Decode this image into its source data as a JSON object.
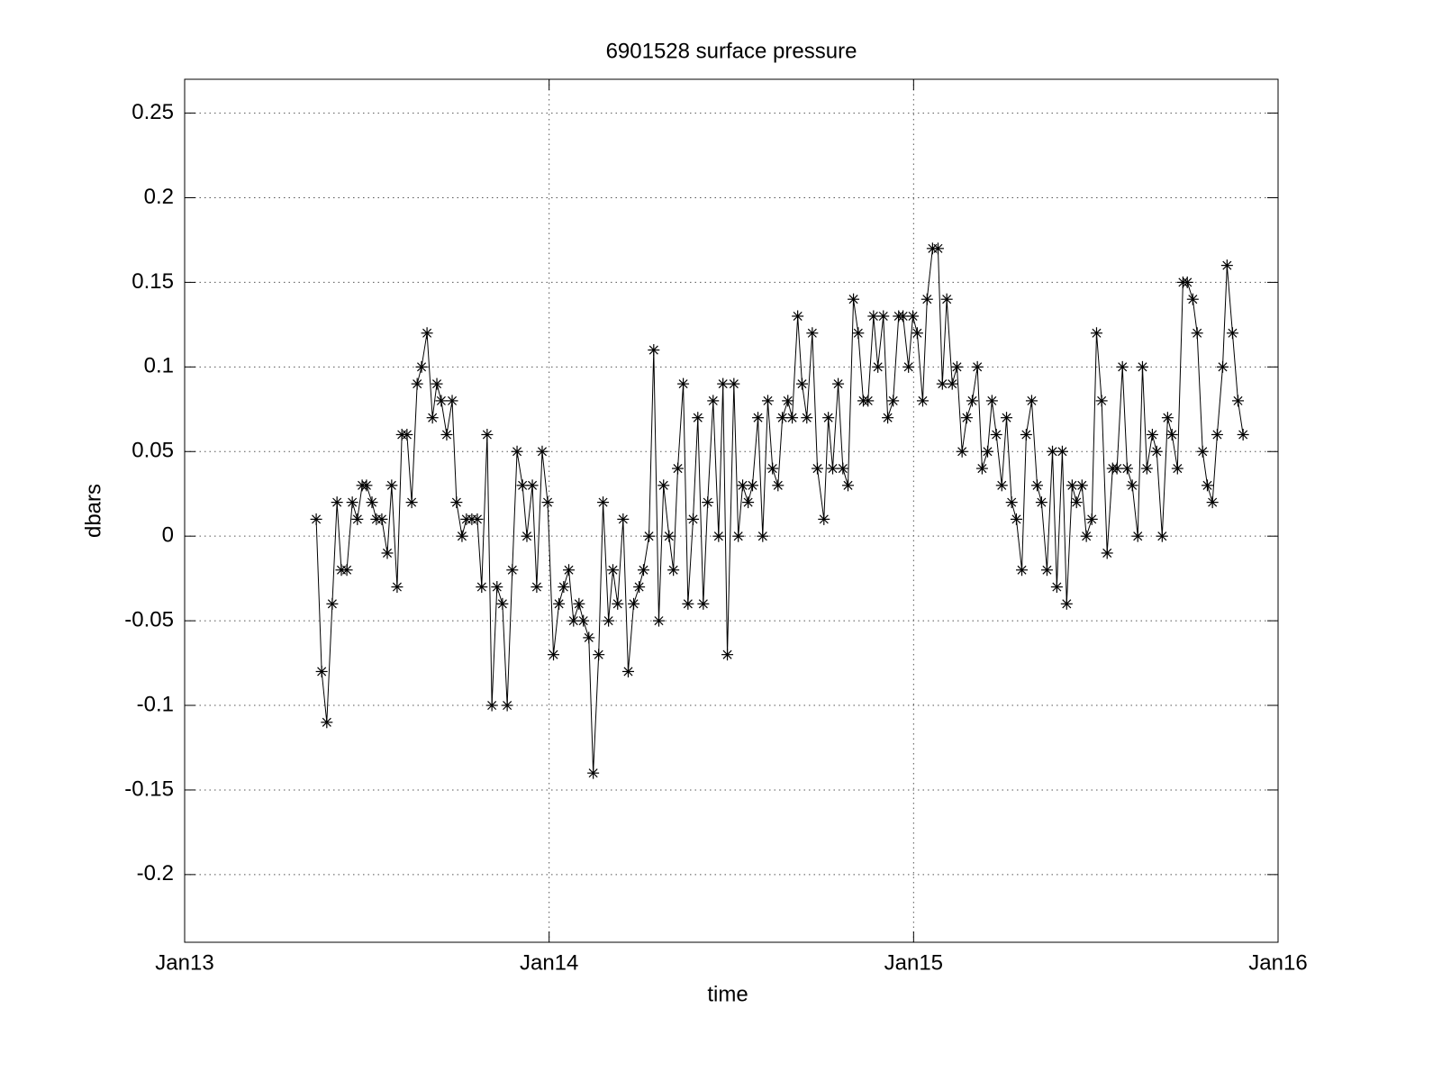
{
  "chart_data": {
    "type": "line",
    "title": "6901528 surface pressure",
    "x_label": "time",
    "y_label": "dbars",
    "xlim": [
      2013,
      2016
    ],
    "xticks": [
      {
        "value": 2013,
        "label": "Jan13"
      },
      {
        "value": 2014,
        "label": "Jan14"
      },
      {
        "value": 2015,
        "label": "Jan15"
      },
      {
        "value": 2016,
        "label": "Jan16"
      }
    ],
    "ylim": [
      -0.24,
      0.27
    ],
    "yticks": [
      -0.2,
      -0.15,
      -0.1,
      -0.05,
      0,
      0.05,
      0.1,
      0.15,
      0.2,
      0.25
    ],
    "grid": true,
    "series": [
      {
        "name": "surface pressure",
        "color": "#000000",
        "marker": "asterisk",
        "x": [
          2013.361,
          2013.376,
          2013.39,
          2013.405,
          2013.418,
          2013.43,
          2013.445,
          2013.46,
          2013.474,
          2013.487,
          2013.499,
          2013.514,
          2013.526,
          2013.541,
          2013.556,
          2013.568,
          2013.583,
          2013.596,
          2013.61,
          2013.623,
          2013.638,
          2013.65,
          2013.665,
          2013.68,
          2013.692,
          2013.704,
          2013.719,
          2013.734,
          2013.746,
          2013.761,
          2013.773,
          2013.788,
          2013.803,
          2013.815,
          2013.83,
          2013.843,
          2013.857,
          2013.872,
          2013.885,
          2013.899,
          2013.912,
          2013.927,
          2013.939,
          2013.954,
          2013.966,
          2013.981,
          2013.996,
          2014.012,
          2014.027,
          2014.04,
          2014.054,
          2014.067,
          2014.082,
          2014.094,
          2014.109,
          2014.121,
          2014.136,
          2014.148,
          2014.163,
          2014.175,
          2014.188,
          2014.203,
          2014.217,
          2014.232,
          2014.247,
          2014.259,
          2014.274,
          2014.287,
          2014.301,
          2014.314,
          2014.329,
          2014.341,
          2014.353,
          2014.368,
          2014.381,
          2014.395,
          2014.408,
          2014.423,
          2014.435,
          2014.45,
          2014.465,
          2014.477,
          2014.489,
          2014.507,
          2014.519,
          2014.531,
          2014.546,
          2014.558,
          2014.573,
          2014.586,
          2014.6,
          2014.613,
          2014.628,
          2014.64,
          2014.655,
          2014.667,
          2014.682,
          2014.694,
          2014.707,
          2014.722,
          2014.736,
          2014.754,
          2014.766,
          2014.778,
          2014.793,
          2014.806,
          2014.82,
          2014.835,
          2014.848,
          2014.862,
          2014.875,
          2014.89,
          2014.902,
          2014.917,
          2014.929,
          2014.944,
          2014.959,
          2014.971,
          2014.986,
          2014.998,
          2015.01,
          2015.025,
          2015.037,
          2015.052,
          2015.067,
          2015.079,
          2015.091,
          2015.106,
          2015.119,
          2015.133,
          2015.146,
          2015.161,
          2015.175,
          2015.188,
          2015.203,
          2015.215,
          2015.227,
          2015.242,
          2015.255,
          2015.269,
          2015.282,
          2015.297,
          2015.309,
          2015.324,
          2015.339,
          2015.351,
          2015.366,
          2015.381,
          2015.393,
          2015.408,
          2015.42,
          2015.435,
          2015.447,
          2015.462,
          2015.474,
          2015.489,
          2015.502,
          2015.516,
          2015.531,
          2015.546,
          2015.558,
          2015.573,
          2015.586,
          2015.6,
          2015.615,
          2015.628,
          2015.64,
          2015.655,
          2015.667,
          2015.682,
          2015.697,
          2015.709,
          2015.724,
          2015.739,
          2015.751,
          2015.766,
          2015.778,
          2015.793,
          2015.806,
          2015.82,
          2015.833,
          2015.848,
          2015.86,
          2015.875,
          2015.89,
          2015.904
        ],
        "values": [
          0.01,
          -0.08,
          -0.11,
          -0.04,
          0.02,
          -0.02,
          -0.02,
          0.02,
          0.01,
          0.03,
          0.03,
          0.02,
          0.01,
          0.01,
          -0.01,
          0.03,
          -0.03,
          0.06,
          0.06,
          0.02,
          0.09,
          0.1,
          0.12,
          0.07,
          0.09,
          0.08,
          0.06,
          0.08,
          0.02,
          0,
          0.01,
          0.01,
          0.01,
          -0.03,
          0.06,
          -0.1,
          -0.03,
          -0.04,
          -0.1,
          -0.02,
          0.05,
          0.03,
          0,
          0.03,
          -0.03,
          0.05,
          0.02,
          -0.07,
          -0.04,
          -0.03,
          -0.02,
          -0.05,
          -0.04,
          -0.05,
          -0.06,
          -0.14,
          -0.07,
          0.02,
          -0.05,
          -0.02,
          -0.04,
          0.01,
          -0.08,
          -0.04,
          -0.03,
          -0.02,
          0,
          0.11,
          -0.05,
          0.03,
          0,
          -0.02,
          0.04,
          0.09,
          -0.04,
          0.01,
          0.07,
          -0.04,
          0.02,
          0.08,
          0,
          0.09,
          -0.07,
          0.09,
          0,
          0.03,
          0.02,
          0.03,
          0.07,
          0,
          0.08,
          0.04,
          0.03,
          0.07,
          0.08,
          0.07,
          0.13,
          0.09,
          0.07,
          0.12,
          0.04,
          0.01,
          0.07,
          0.04,
          0.09,
          0.04,
          0.03,
          0.14,
          0.12,
          0.08,
          0.08,
          0.13,
          0.1,
          0.13,
          0.07,
          0.08,
          0.13,
          0.13,
          0.1,
          0.13,
          0.12,
          0.08,
          0.14,
          0.17,
          0.17,
          0.09,
          0.14,
          0.09,
          0.1,
          0.05,
          0.07,
          0.08,
          0.1,
          0.04,
          0.05,
          0.08,
          0.06,
          0.03,
          0.07,
          0.02,
          0.01,
          -0.02,
          0.06,
          0.08,
          0.03,
          0.02,
          -0.02,
          0.05,
          -0.03,
          0.05,
          -0.04,
          0.03,
          0.02,
          0.03,
          0,
          0.01,
          0.12,
          0.08,
          -0.01,
          0.04,
          0.04,
          0.1,
          0.04,
          0.03,
          0,
          0.1,
          0.04,
          0.06,
          0.05,
          0,
          0.07,
          0.06,
          0.04,
          0.15,
          0.15,
          0.14,
          0.12,
          0.05,
          0.03,
          0.02,
          0.06,
          0.1,
          0.16,
          0.12,
          0.08,
          0.06
        ]
      }
    ]
  }
}
